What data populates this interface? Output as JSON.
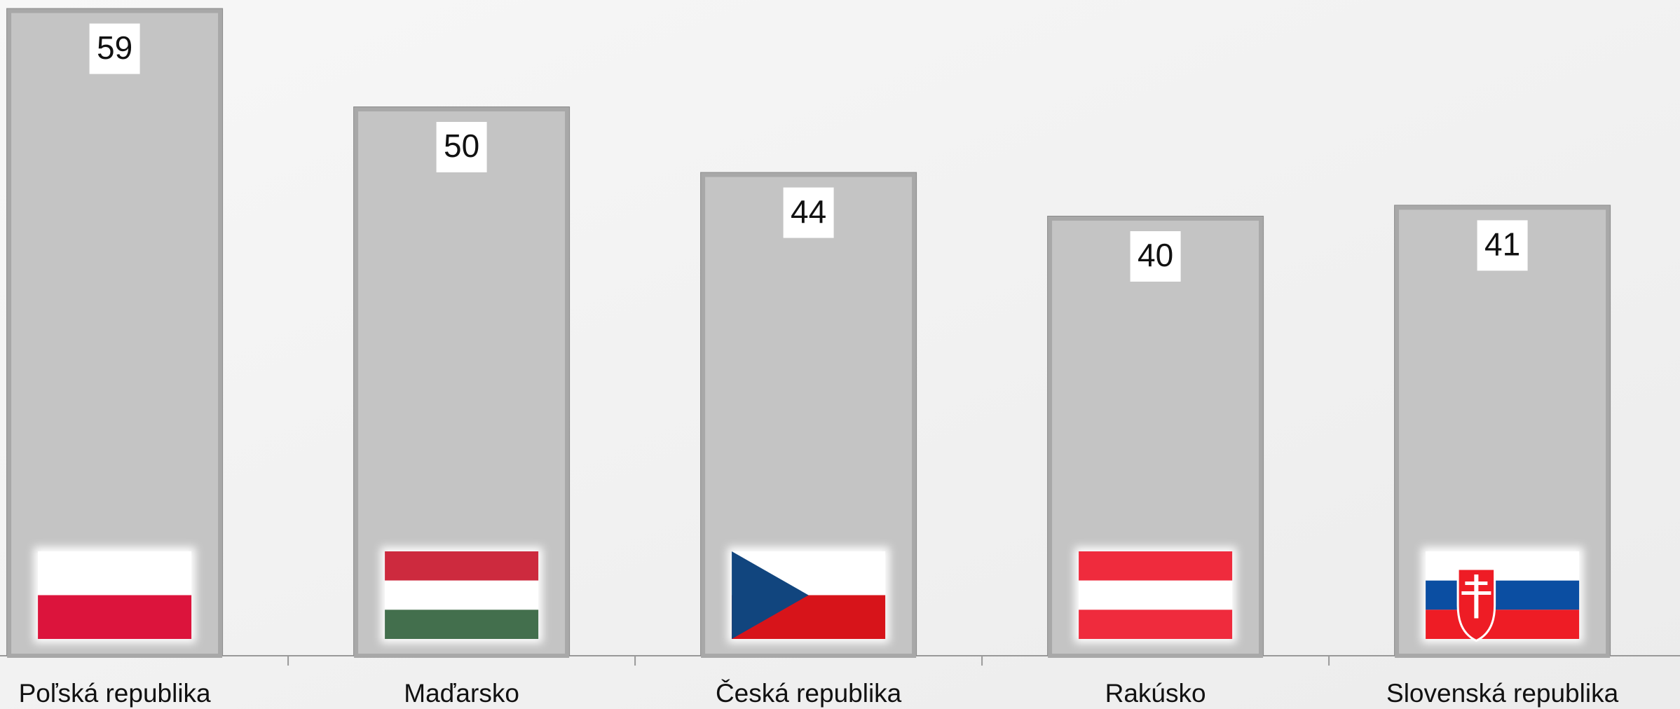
{
  "chart_data": {
    "type": "bar",
    "categories": [
      "Poľská republika",
      "Maďarsko",
      "Česká republika",
      "Rakúsko",
      "Slovenská republika"
    ],
    "values": [
      59,
      50,
      44,
      40,
      41
    ],
    "color": "#c4c4c4",
    "ylim": [
      0,
      60
    ]
  }
}
